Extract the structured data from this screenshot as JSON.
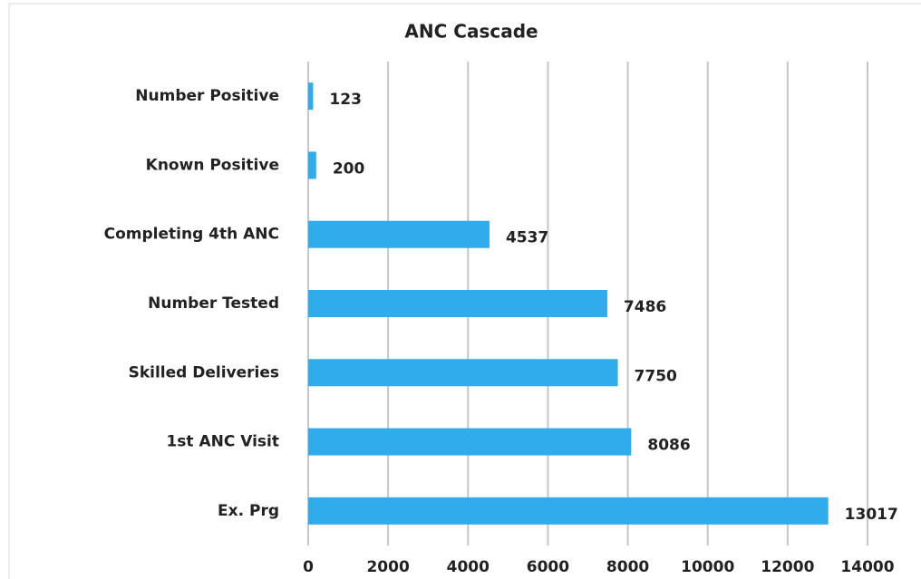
{
  "chart_data": {
    "type": "bar",
    "orientation": "horizontal",
    "title": "ANC Cascade",
    "categories": [
      "Number Positive",
      "Known Positive",
      "Completing 4th ANC",
      "Number Tested",
      "Skilled Deliveries",
      "1st ANC Visit",
      "Ex. Prg"
    ],
    "values": [
      123,
      200,
      4537,
      7486,
      7750,
      8086,
      13017
    ],
    "color": "#30abeb",
    "xlim": [
      0,
      14000
    ],
    "xticks": [
      0,
      2000,
      4000,
      6000,
      8000,
      10000,
      12000,
      14000
    ],
    "grid": true
  }
}
